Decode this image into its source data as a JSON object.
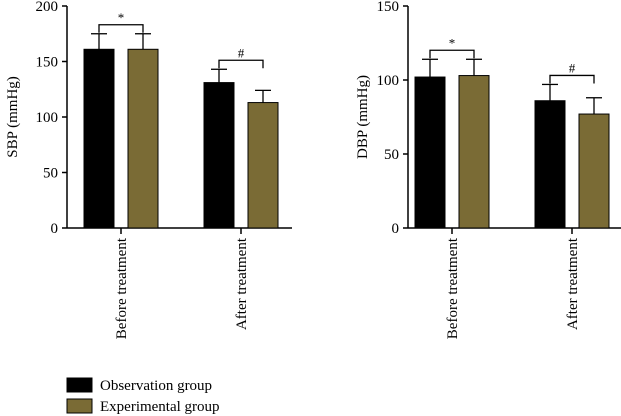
{
  "chart_data": [
    {
      "type": "bar",
      "ylabel": "SBP (mmHg)",
      "categories": [
        "Before treatment",
        "After treatment"
      ],
      "ylim": [
        0,
        200
      ],
      "yticks": [
        0,
        50,
        100,
        150,
        200
      ],
      "series": [
        {
          "name": "Observation group",
          "values": [
            161,
            131
          ],
          "errors": [
            14,
            12
          ]
        },
        {
          "name": "Experimental group",
          "values": [
            161,
            113
          ],
          "errors": [
            14,
            11
          ]
        }
      ],
      "annotations": [
        "*",
        "#"
      ]
    },
    {
      "type": "bar",
      "ylabel": "DBP (mmHg)",
      "categories": [
        "Before treatment",
        "After treatment"
      ],
      "ylim": [
        0,
        150
      ],
      "yticks": [
        0,
        50,
        100,
        150
      ],
      "series": [
        {
          "name": "Observation group",
          "values": [
            102,
            86
          ],
          "errors": [
            12,
            11
          ]
        },
        {
          "name": "Experimental group",
          "values": [
            103,
            77
          ],
          "errors": [
            11,
            11
          ]
        }
      ],
      "annotations": [
        "*",
        "#"
      ]
    }
  ],
  "legend": [
    {
      "label": "Observation group",
      "color": "#000000"
    },
    {
      "label": "Experimental group",
      "color": "#7a6b35"
    }
  ]
}
